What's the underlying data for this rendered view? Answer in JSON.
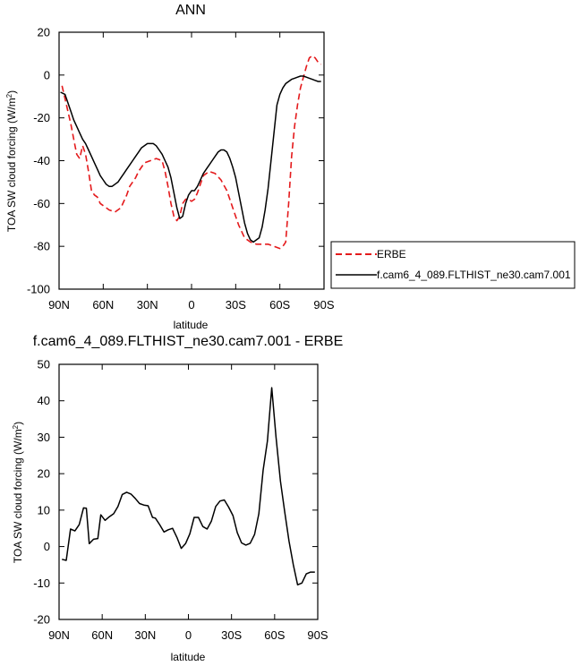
{
  "chart_data": [
    {
      "type": "line",
      "title": "ANN",
      "xlabel": "latitude",
      "ylabel": "TOA SW cloud forcing (W/m",
      "ylabel_sup": "2",
      "ylabel_close": ")",
      "xlim": [
        -90,
        90
      ],
      "ylim": [
        -100,
        20
      ],
      "x_ticks": [
        -90,
        -60,
        -30,
        0,
        30,
        60,
        90
      ],
      "x_tick_labels": [
        "90N",
        "60N",
        "30N",
        "0",
        "30S",
        "60S",
        "90S"
      ],
      "y_ticks": [
        20,
        0,
        -20,
        -40,
        -60,
        -80,
        -100
      ],
      "y_tick_labels": [
        "20",
        "0",
        "-20",
        "-40",
        "-60",
        "-80",
        "-100"
      ],
      "grid": false,
      "legend_position": "right",
      "series": [
        {
          "name": "ERBE",
          "color": "#e41a1c",
          "dashed": true,
          "x": [
            -88,
            -86,
            -84,
            -82,
            -80,
            -78,
            -76,
            -74,
            -72,
            -70,
            -68,
            -66,
            -64,
            -62,
            -60,
            -56,
            -52,
            -48,
            -44,
            -42,
            -40,
            -38,
            -36,
            -32,
            -28,
            -24,
            -20,
            -18,
            -16,
            -14,
            -12,
            -10,
            -8,
            -6,
            -4,
            -2,
            0,
            2,
            4,
            6,
            8,
            12,
            16,
            20,
            24,
            28,
            32,
            36,
            40,
            44,
            48,
            52,
            56,
            60,
            62,
            64,
            66,
            68,
            70,
            72,
            74,
            76,
            78,
            80,
            82,
            84,
            86,
            88
          ],
          "y": [
            -5,
            -11,
            -17,
            -23,
            -30,
            -37,
            -39,
            -33,
            -37,
            -45,
            -54,
            -56,
            -57,
            -60,
            -61,
            -63,
            -64,
            -62,
            -56,
            -52,
            -50,
            -48,
            -45,
            -41,
            -40,
            -39,
            -40,
            -45,
            -52,
            -60,
            -66,
            -68,
            -66,
            -60,
            -58,
            -58,
            -59,
            -58,
            -55,
            -51,
            -47,
            -45,
            -46,
            -49,
            -54,
            -62,
            -70,
            -76,
            -78,
            -79,
            -79,
            -79,
            -80,
            -81,
            -80,
            -78,
            -60,
            -38,
            -24,
            -14,
            -6,
            -1,
            4,
            8,
            9,
            8,
            6,
            5
          ],
          "y_note": ""
        },
        {
          "name": "f.cam6_4_089.FLTHIST_ne30.cam7.001",
          "color": "#000000",
          "dashed": false,
          "x": [
            -89,
            -86,
            -84,
            -82,
            -80,
            -78,
            -76,
            -74,
            -72,
            -70,
            -68,
            -66,
            -64,
            -62,
            -60,
            -58,
            -56,
            -54,
            -52,
            -50,
            -48,
            -46,
            -44,
            -42,
            -40,
            -38,
            -36,
            -34,
            -32,
            -30,
            -28,
            -26,
            -24,
            -22,
            -20,
            -18,
            -16,
            -14,
            -12,
            -10,
            -8,
            -6,
            -4,
            -2,
            0,
            2,
            4,
            6,
            8,
            10,
            12,
            14,
            16,
            18,
            20,
            22,
            24,
            26,
            28,
            30,
            32,
            34,
            36,
            38,
            40,
            42,
            44,
            46,
            48,
            50,
            52,
            54,
            56,
            58,
            60,
            62,
            64,
            66,
            68,
            70,
            72,
            74,
            76,
            78,
            80,
            82,
            84,
            86,
            88
          ],
          "y": [
            -8,
            -9,
            -13,
            -17,
            -21,
            -24,
            -27,
            -30,
            -32,
            -35,
            -38,
            -41,
            -44,
            -47,
            -49,
            -51,
            -52,
            -52,
            -51,
            -50,
            -48,
            -46,
            -44,
            -42,
            -40,
            -38,
            -36,
            -34,
            -33,
            -32,
            -32,
            -32,
            -33,
            -35,
            -37,
            -40,
            -43,
            -48,
            -55,
            -62,
            -67,
            -66,
            -60,
            -56,
            -54,
            -54,
            -52,
            -49,
            -46,
            -44,
            -42,
            -40,
            -38,
            -36,
            -35,
            -35,
            -36,
            -39,
            -43,
            -48,
            -55,
            -62,
            -69,
            -74,
            -77,
            -78,
            -77,
            -76,
            -71,
            -63,
            -53,
            -40,
            -27,
            -14,
            -9,
            -6,
            -4,
            -3,
            -2,
            -1.5,
            -1,
            -0.5,
            -0.5,
            -1,
            -1.5,
            -2,
            -2.5,
            -3,
            -3
          ],
          "y_note": ""
        }
      ]
    },
    {
      "type": "line",
      "title": "f.cam6_4_089.FLTHIST_ne30.cam7.001 - ERBE",
      "xlabel": "latitude",
      "ylabel": "TOA SW cloud forcing (W/m",
      "ylabel_sup": "2",
      "ylabel_close": ")",
      "xlim": [
        -90,
        90
      ],
      "ylim": [
        -20,
        50
      ],
      "x_ticks": [
        -90,
        -60,
        -30,
        0,
        30,
        60,
        90
      ],
      "x_tick_labels": [
        "90N",
        "60N",
        "30N",
        "0",
        "30S",
        "60S",
        "90S"
      ],
      "y_ticks": [
        50,
        40,
        30,
        20,
        10,
        0,
        -10,
        -20
      ],
      "y_tick_labels": [
        "50",
        "40",
        "30",
        "20",
        "10",
        "0",
        "-10",
        "-20"
      ],
      "grid": false,
      "series": [
        {
          "name": "",
          "color": "#000000",
          "dashed": false,
          "x": [
            -88,
            -85,
            -82,
            -79,
            -76,
            -73,
            -71,
            -69,
            -66,
            -63,
            -61,
            -58,
            -55,
            -52,
            -49,
            -46,
            -43,
            -40,
            -37,
            -34,
            -31,
            -28,
            -25,
            -23,
            -20,
            -17,
            -14,
            -11,
            -8,
            -5,
            -2,
            1,
            4,
            7,
            10,
            13,
            16,
            19,
            22,
            25,
            28,
            31,
            34,
            37,
            40,
            43,
            46,
            49,
            52,
            55,
            58,
            61,
            64,
            67,
            70,
            73,
            76,
            79,
            82,
            85,
            88
          ],
          "y": [
            -3.5,
            -3.8,
            4.8,
            4.3,
            6,
            10.6,
            10.5,
            0.8,
            2,
            2.2,
            8.7,
            7.2,
            8.2,
            9,
            11,
            14.3,
            14.9,
            14.4,
            13.2,
            11.8,
            11.4,
            11.2,
            8,
            7.8,
            6,
            4,
            4.6,
            5,
            2.5,
            -0.5,
            0.8,
            3.5,
            8,
            8,
            5.5,
            4.8,
            7,
            11,
            12.5,
            12.8,
            10.8,
            8.5,
            3.8,
            1,
            0.4,
            0.9,
            3.3,
            9,
            21,
            29,
            43.6,
            30,
            18,
            9.5,
            1.5,
            -5,
            -10.5,
            -10,
            -7.5,
            -7,
            -7
          ],
          "y_note": ""
        }
      ]
    }
  ]
}
